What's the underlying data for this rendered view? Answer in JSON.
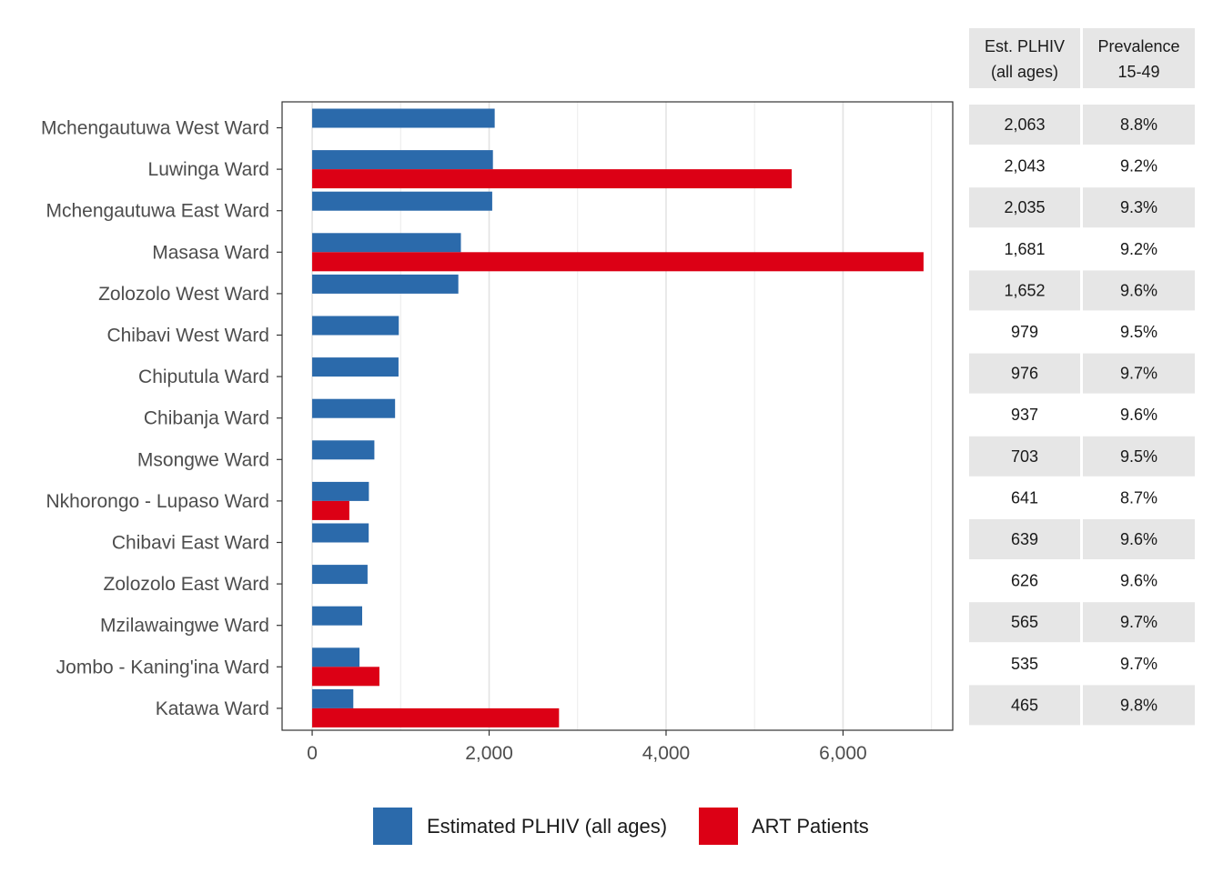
{
  "chart_data": {
    "type": "bar",
    "orientation": "horizontal",
    "categories": [
      "Mchengautuwa West Ward",
      "Luwinga Ward",
      "Mchengautuwa East Ward",
      "Masasa Ward",
      "Zolozolo West Ward",
      "Chibavi West Ward",
      "Chiputula Ward",
      "Chibanja Ward",
      "Msongwe Ward",
      "Nkhorongo - Lupaso Ward",
      "Chibavi East Ward",
      "Zolozolo East Ward",
      "Mzilawaingwe Ward",
      "Jombo - Kaning'ina Ward",
      "Katawa Ward"
    ],
    "series": [
      {
        "name": "Estimated PLHIV (all ages)",
        "color": "#2b6aab",
        "values": [
          2063,
          2043,
          2035,
          1681,
          1652,
          979,
          976,
          937,
          703,
          641,
          639,
          626,
          565,
          535,
          465
        ]
      },
      {
        "name": "ART Patients",
        "color": "#dc0015",
        "values": [
          null,
          5420,
          null,
          6910,
          null,
          null,
          null,
          null,
          null,
          420,
          null,
          null,
          null,
          760,
          2790
        ]
      }
    ],
    "xlim": [
      -340,
      7240
    ],
    "xticks": [
      0,
      2000,
      4000,
      6000
    ],
    "xtick_labels": [
      "0",
      "2,000",
      "4,000",
      "6,000"
    ],
    "grid": true,
    "legend_position": "bottom",
    "table": {
      "headers": [
        [
          "Est. PLHIV",
          "(all ages)"
        ],
        [
          "Prevalence",
          "15-49"
        ]
      ],
      "rows": [
        [
          "2,063",
          "8.8%"
        ],
        [
          "2,043",
          "9.2%"
        ],
        [
          "2,035",
          "9.3%"
        ],
        [
          "1,681",
          "9.2%"
        ],
        [
          "1,652",
          "9.6%"
        ],
        [
          "979",
          "9.5%"
        ],
        [
          "976",
          "9.7%"
        ],
        [
          "937",
          "9.6%"
        ],
        [
          "703",
          "9.5%"
        ],
        [
          "641",
          "8.7%"
        ],
        [
          "639",
          "9.6%"
        ],
        [
          "626",
          "9.6%"
        ],
        [
          "565",
          "9.7%"
        ],
        [
          "535",
          "9.7%"
        ],
        [
          "465",
          "9.8%"
        ]
      ]
    }
  }
}
